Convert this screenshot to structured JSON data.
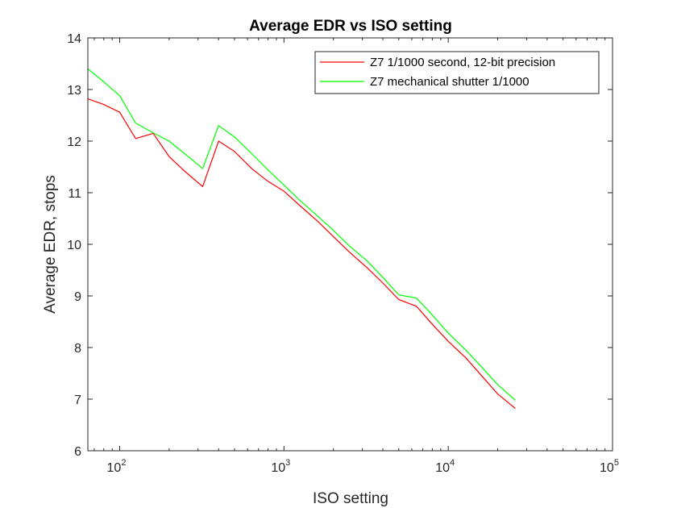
{
  "chart_data": {
    "type": "line",
    "title": "Average EDR vs ISO setting",
    "xlabel": "ISO setting",
    "ylabel": "Average EDR, stops",
    "xscale": "log",
    "xlim": [
      64,
      100000
    ],
    "ylim": [
      6,
      14
    ],
    "xticks": [
      {
        "value": 100,
        "base": "10",
        "exp": "2"
      },
      {
        "value": 1000,
        "base": "10",
        "exp": "3"
      },
      {
        "value": 10000,
        "base": "10",
        "exp": "4"
      },
      {
        "value": 100000,
        "base": "10",
        "exp": "5"
      }
    ],
    "yticks": [
      "6",
      "7",
      "8",
      "9",
      "10",
      "11",
      "12",
      "13",
      "14"
    ],
    "grid": false,
    "legend_position": "top-right",
    "series": [
      {
        "name": "Z7 1/1000 second, 12-bit precision",
        "color": "#ff0000",
        "x": [
          64,
          80,
          100,
          125,
          160,
          200,
          250,
          320,
          400,
          500,
          640,
          800,
          1000,
          1250,
          1600,
          2000,
          2500,
          3200,
          4000,
          5000,
          6400,
          8000,
          10000,
          12800,
          16000,
          20000,
          25600
        ],
        "y": [
          12.82,
          12.71,
          12.56,
          12.05,
          12.15,
          11.7,
          11.41,
          11.12,
          12.0,
          11.8,
          11.46,
          11.22,
          11.03,
          10.75,
          10.45,
          10.15,
          9.85,
          9.55,
          9.25,
          8.93,
          8.8,
          8.45,
          8.12,
          7.8,
          7.45,
          7.1,
          6.82
        ]
      },
      {
        "name": "Z7 mechanical shutter 1/1000",
        "color": "#00ff00",
        "x": [
          64,
          80,
          100,
          125,
          160,
          200,
          250,
          320,
          400,
          500,
          640,
          800,
          1000,
          1250,
          1600,
          2000,
          2500,
          3200,
          4000,
          5000,
          6400,
          8000,
          10000,
          12800,
          16000,
          20000,
          25600
        ],
        "y": [
          13.4,
          13.15,
          12.88,
          12.35,
          12.16,
          12.0,
          11.75,
          11.47,
          12.3,
          12.08,
          11.75,
          11.44,
          11.15,
          10.85,
          10.55,
          10.27,
          9.97,
          9.68,
          9.36,
          9.02,
          8.96,
          8.63,
          8.28,
          7.95,
          7.62,
          7.28,
          6.98
        ]
      }
    ]
  }
}
